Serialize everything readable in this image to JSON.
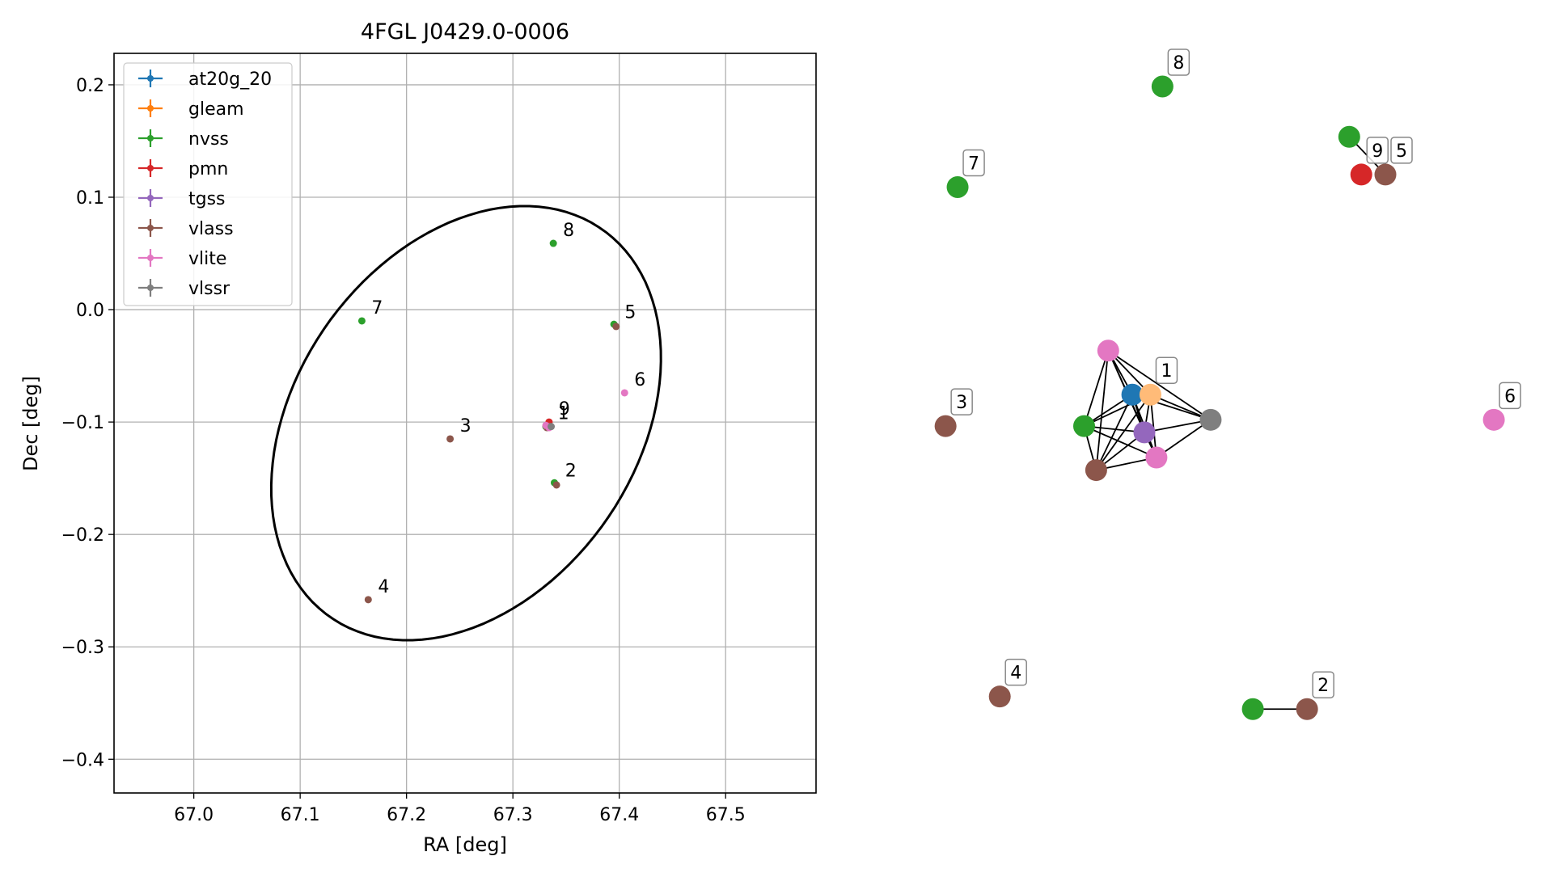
{
  "chart_data": [
    {
      "type": "scatter",
      "title": "4FGL J0429.0-0006",
      "xlabel": "RA [deg]",
      "ylabel": "Dec [deg]",
      "xlim": [
        66.925,
        67.585
      ],
      "ylim": [
        -0.43,
        0.228
      ],
      "xticks": [
        {
          "value": 67.0,
          "label": "67.0"
        },
        {
          "value": 67.1,
          "label": "67.1"
        },
        {
          "value": 67.2,
          "label": "67.2"
        },
        {
          "value": 67.3,
          "label": "67.3"
        },
        {
          "value": 67.4,
          "label": "67.4"
        },
        {
          "value": 67.5,
          "label": "67.5"
        }
      ],
      "yticks": [
        {
          "value": 0.2,
          "label": "0.2"
        },
        {
          "value": 0.1,
          "label": "0.1"
        },
        {
          "value": 0.0,
          "label": "0.0"
        },
        {
          "value": -0.1,
          "label": "−0.1"
        },
        {
          "value": -0.2,
          "label": "−0.2"
        },
        {
          "value": -0.3,
          "label": "−0.3"
        },
        {
          "value": -0.4,
          "label": "−0.4"
        }
      ],
      "grid": true,
      "legend_position": "top-left",
      "series": [
        {
          "name": "at20g_20",
          "color": "#1f77b4",
          "points": [
            [
              67.332,
              -0.103
            ]
          ]
        },
        {
          "name": "gleam",
          "color": "#ff7f0e",
          "points": [
            [
              67.334,
              -0.102
            ]
          ]
        },
        {
          "name": "nvss",
          "color": "#2ca02c",
          "points": [
            [
              67.338,
              0.059
            ],
            [
              67.395,
              -0.013
            ],
            [
              67.158,
              -0.01
            ],
            [
              67.339,
              -0.154
            ],
            [
              67.331,
              -0.104
            ]
          ]
        },
        {
          "name": "pmn",
          "color": "#d62728",
          "points": [
            [
              67.334,
              -0.1
            ]
          ]
        },
        {
          "name": "tgss",
          "color": "#9467bd",
          "points": [
            [
              67.333,
              -0.104
            ]
          ]
        },
        {
          "name": "vlass",
          "color": "#8c564b",
          "points": [
            [
              67.397,
              -0.015
            ],
            [
              67.241,
              -0.115
            ],
            [
              67.341,
              -0.156
            ],
            [
              67.164,
              -0.258
            ],
            [
              67.332,
              -0.105
            ]
          ]
        },
        {
          "name": "vlite",
          "color": "#e377c2",
          "points": [
            [
              67.405,
              -0.074
            ],
            [
              67.331,
              -0.103
            ],
            [
              67.334,
              -0.105
            ]
          ]
        },
        {
          "name": "vlssr",
          "color": "#7f7f7f",
          "points": [
            [
              67.336,
              -0.104
            ]
          ]
        }
      ],
      "ellipse": {
        "center": [
          67.256,
          -0.101
        ],
        "semi_axes": [
          0.157,
          0.215
        ],
        "angle_deg": -40,
        "color": "#000000"
      },
      "annotations": [
        {
          "text": "1",
          "x": 67.333,
          "y": -0.104
        },
        {
          "text": "2",
          "x": 67.34,
          "y": -0.155
        },
        {
          "text": "3",
          "x": 67.241,
          "y": -0.115
        },
        {
          "text": "4",
          "x": 67.164,
          "y": -0.258
        },
        {
          "text": "5",
          "x": 67.396,
          "y": -0.014
        },
        {
          "text": "6",
          "x": 67.405,
          "y": -0.074
        },
        {
          "text": "7",
          "x": 67.158,
          "y": -0.01
        },
        {
          "text": "8",
          "x": 67.338,
          "y": 0.059
        },
        {
          "text": "9",
          "x": 67.334,
          "y": -0.1
        }
      ]
    },
    {
      "type": "network",
      "colors": {
        "at20g_20": "#1f77b4",
        "gleam": "#ffbb78",
        "nvss": "#2ca02c",
        "pmn": "#d62728",
        "tgss": "#9467bd",
        "vlass": "#8c564b",
        "vlite": "#e377c2",
        "vlssr": "#7f7f7f"
      },
      "nodes": [
        {
          "id": "n1",
          "catalog": "at20g_20",
          "x": 0.38,
          "y": 0.49
        },
        {
          "id": "g1",
          "catalog": "gleam",
          "x": 0.41,
          "y": 0.49
        },
        {
          "id": "nv1",
          "catalog": "nvss",
          "x": 0.3,
          "y": 0.54
        },
        {
          "id": "tg1",
          "catalog": "tgss",
          "x": 0.4,
          "y": 0.55
        },
        {
          "id": "vli1",
          "catalog": "vlite",
          "x": 0.34,
          "y": 0.42
        },
        {
          "id": "vli2",
          "catalog": "vlite",
          "x": 0.42,
          "y": 0.59
        },
        {
          "id": "vla1",
          "catalog": "vlass",
          "x": 0.32,
          "y": 0.61
        },
        {
          "id": "vls1",
          "catalog": "vlssr",
          "x": 0.51,
          "y": 0.53
        },
        {
          "id": "nv8",
          "catalog": "nvss",
          "x": 0.43,
          "y": 0.0
        },
        {
          "id": "nv5",
          "catalog": "nvss",
          "x": 0.74,
          "y": 0.08
        },
        {
          "id": "vla5",
          "catalog": "vlass",
          "x": 0.8,
          "y": 0.14
        },
        {
          "id": "pmn9",
          "catalog": "pmn",
          "x": 0.76,
          "y": 0.14
        },
        {
          "id": "nv7",
          "catalog": "nvss",
          "x": 0.09,
          "y": 0.16
        },
        {
          "id": "vla3",
          "catalog": "vlass",
          "x": 0.07,
          "y": 0.54
        },
        {
          "id": "vli6",
          "catalog": "vlite",
          "x": 0.98,
          "y": 0.53
        },
        {
          "id": "vla4",
          "catalog": "vlass",
          "x": 0.16,
          "y": 0.97
        },
        {
          "id": "nv2",
          "catalog": "nvss",
          "x": 0.58,
          "y": 0.99
        },
        {
          "id": "vla2",
          "catalog": "vlass",
          "x": 0.67,
          "y": 0.99
        }
      ],
      "edges": [
        [
          "vli1",
          "n1"
        ],
        [
          "vli1",
          "g1"
        ],
        [
          "vli1",
          "nv1"
        ],
        [
          "vli1",
          "tg1"
        ],
        [
          "vli1",
          "vli2"
        ],
        [
          "vli1",
          "vls1"
        ],
        [
          "vli1",
          "vla1"
        ],
        [
          "n1",
          "g1"
        ],
        [
          "n1",
          "nv1"
        ],
        [
          "n1",
          "tg1"
        ],
        [
          "n1",
          "vli2"
        ],
        [
          "n1",
          "vla1"
        ],
        [
          "n1",
          "vls1"
        ],
        [
          "g1",
          "nv1"
        ],
        [
          "g1",
          "tg1"
        ],
        [
          "g1",
          "vli2"
        ],
        [
          "g1",
          "vla1"
        ],
        [
          "g1",
          "vls1"
        ],
        [
          "nv1",
          "tg1"
        ],
        [
          "nv1",
          "vli2"
        ],
        [
          "nv1",
          "vla1"
        ],
        [
          "tg1",
          "vli2"
        ],
        [
          "tg1",
          "vla1"
        ],
        [
          "tg1",
          "vls1"
        ],
        [
          "vli2",
          "vla1"
        ],
        [
          "vli2",
          "vls1"
        ],
        [
          "nv5",
          "vla5"
        ],
        [
          "nv2",
          "vla2"
        ]
      ],
      "labels": [
        {
          "text": "1",
          "node": "g1"
        },
        {
          "text": "2",
          "node": "vla2"
        },
        {
          "text": "3",
          "node": "vla3"
        },
        {
          "text": "4",
          "node": "vla4"
        },
        {
          "text": "5",
          "node": "vla5"
        },
        {
          "text": "6",
          "node": "vli6"
        },
        {
          "text": "7",
          "node": "nv7"
        },
        {
          "text": "8",
          "node": "nv8"
        },
        {
          "text": "9",
          "node": "pmn9"
        }
      ]
    }
  ]
}
